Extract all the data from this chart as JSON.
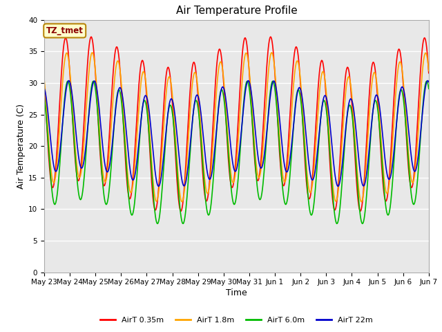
{
  "title": "Air Temperature Profile",
  "xlabel": "Time",
  "ylabel": "Air Temperature (C)",
  "ylim": [
    0,
    40
  ],
  "tick_labels": [
    "May 23",
    "May 24",
    "May 25",
    "May 26",
    "May 27",
    "May 28",
    "May 29",
    "May 30",
    "May 31",
    "Jun 1",
    "Jun 2",
    "Jun 3",
    "Jun 4",
    "Jun 5",
    "Jun 6",
    "Jun 7"
  ],
  "annotation_text": "TZ_tmet",
  "annotation_color": "#8B0000",
  "annotation_bg": "#FFFFCC",
  "annotation_border": "#B8860B",
  "series": [
    {
      "label": "AirT 0.35m",
      "color": "#FF0000"
    },
    {
      "label": "AirT 1.8m",
      "color": "#FFA500"
    },
    {
      "label": "AirT 6.0m",
      "color": "#00BB00"
    },
    {
      "label": "AirT 22m",
      "color": "#0000CC"
    }
  ],
  "bg_color": "#E8E8E8",
  "grid_color": "#FFFFFF",
  "title_fontsize": 11,
  "axis_label_fontsize": 9,
  "tick_fontsize": 7.5
}
